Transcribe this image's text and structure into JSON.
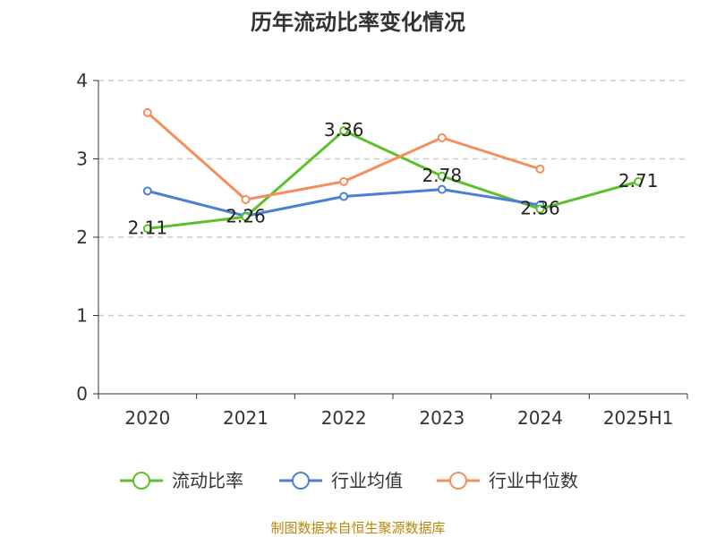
{
  "chart_data": {
    "type": "line",
    "title": "历年流动比率变化情况",
    "categories": [
      "2020",
      "2021",
      "2022",
      "2023",
      "2024",
      "2025H1"
    ],
    "ylim": [
      0,
      4
    ],
    "yticks": [
      0,
      1,
      2,
      3,
      4
    ],
    "grid": true,
    "legend_position": "bottom",
    "series": [
      {
        "name": "流动比率",
        "color": "#5cc12b",
        "values": [
          2.11,
          2.26,
          3.36,
          2.78,
          2.36,
          2.71
        ],
        "data_labels": [
          "2.11",
          "2.26",
          "3.36",
          "2.78",
          "2.36",
          "2.71"
        ]
      },
      {
        "name": "行业均值",
        "color": "#4d7fd7",
        "values": [
          2.59,
          2.27,
          2.52,
          2.61,
          2.41,
          null
        ]
      },
      {
        "name": "行业中位数",
        "color": "#f78d5a",
        "values": [
          3.59,
          2.48,
          2.71,
          3.27,
          2.87,
          null
        ]
      }
    ]
  },
  "source": {
    "text": "制图数据来自恒生聚源数据库",
    "color": "#b8860b"
  }
}
